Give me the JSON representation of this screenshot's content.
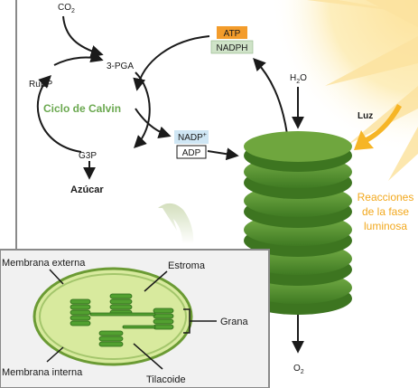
{
  "calvin": {
    "co2": "CO",
    "co2_sub": "2",
    "pga": "3-PGA",
    "rubp": "RuBP",
    "cycle_name": "Ciclo de Calvin",
    "g3p": "G3P",
    "sugar": "Azúcar"
  },
  "energy": {
    "atp": "ATP",
    "nadph": "NADPH",
    "nadp": "NADP",
    "nadp_sup": "+",
    "adp": "ADP"
  },
  "light": {
    "water": "H",
    "water_sub": "2",
    "water_tail": "O",
    "light_label": "Luz",
    "phase_line1": "Reacciones",
    "phase_line2": "de la fase",
    "phase_line3": "luminosa",
    "oxygen": "O",
    "oxygen_sub": "2"
  },
  "chloroplast": {
    "outer_membrane": "Membrana externa",
    "stroma": "Estroma",
    "grana": "Grana",
    "inner_membrane": "Membrana interna",
    "thylakoid": "Tilacoide"
  },
  "colors": {
    "atp_fill": "#f39c2b",
    "nadph_fill": "#cfe3c8",
    "nadp_fill": "#cfe6f4",
    "cycle_text": "#6aa84f",
    "phase_text": "#f2a81d",
    "thylakoid_green": "#4f8f2c",
    "stroma_fill": "#d4e89a",
    "sun": "#fde7a3"
  }
}
